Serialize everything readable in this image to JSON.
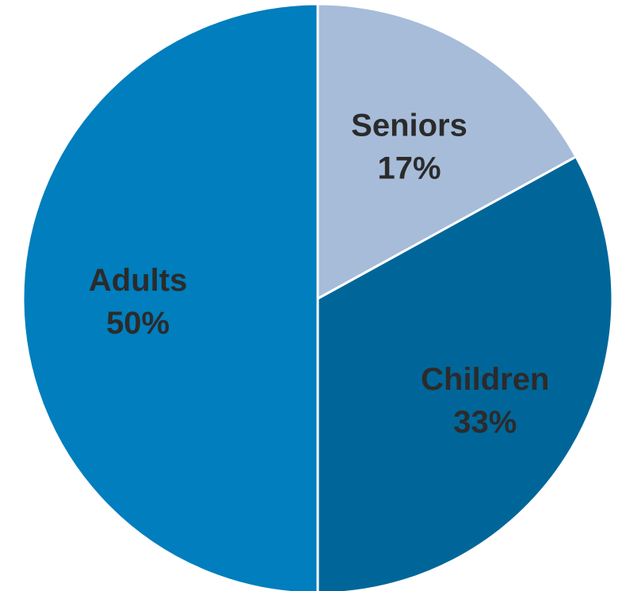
{
  "chart_data": {
    "type": "pie",
    "slices": [
      {
        "label": "Seniors",
        "value": 17,
        "value_label": "17%",
        "color": "#a6bcd9"
      },
      {
        "label": "Children",
        "value": 33,
        "value_label": "33%",
        "color": "#006699"
      },
      {
        "label": "Adults",
        "value": 50,
        "value_label": "50%",
        "color": "#007ebd"
      }
    ],
    "start_angle_deg": 0,
    "direction": "clockwise",
    "legend": "none",
    "label_color": "#2b2b2b"
  }
}
